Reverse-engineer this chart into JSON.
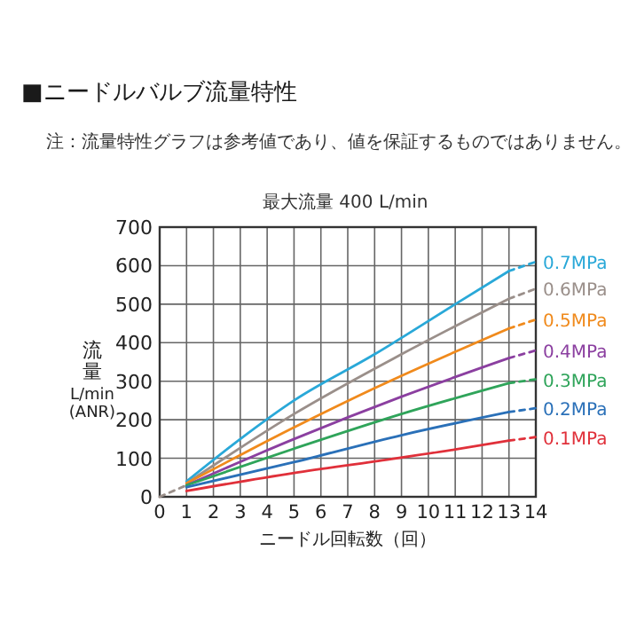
{
  "chart_data": {
    "type": "line",
    "title": "■ニードルバルブ流量特性",
    "subtitle": "最大流量 400 L/min",
    "annotations": [
      "注：流量特性グラフは参考値であり、値を保証するものではありません。"
    ],
    "xlabel": "ニードル回転数（回）",
    "ylabel": "流量 L/min (ANR)",
    "xlim": [
      0,
      14
    ],
    "xticks": [
      0,
      1,
      2,
      3,
      4,
      5,
      6,
      7,
      8,
      9,
      10,
      11,
      12,
      13,
      14
    ],
    "ylim": [
      0,
      700
    ],
    "yticks": [
      0,
      100,
      200,
      300,
      400,
      500,
      600,
      700
    ],
    "grid": true,
    "line_style": "solid",
    "series": [
      {
        "color": "#9a8f8a",
        "x": [
          0,
          1
        ],
        "values": [
          0,
          30
        ],
        "line_style": "dashed"
      },
      {
        "color": "#29a8d8",
        "x": [
          1,
          3,
          5,
          8,
          11,
          13
        ],
        "values": [
          40,
          150,
          250,
          370,
          500,
          586
        ]
      },
      {
        "name": "0.7MPa",
        "color": "#29a8d8",
        "x": [
          13,
          14
        ],
        "values": [
          586,
          610
        ],
        "line_style": "dashed"
      },
      {
        "color": "#9a8f8a",
        "x": [
          1,
          5,
          9,
          13
        ],
        "values": [
          35,
          215,
          370,
          514
        ]
      },
      {
        "name": "0.6MPa",
        "color": "#9a8f8a",
        "x": [
          13,
          14
        ],
        "values": [
          514,
          540
        ],
        "line_style": "dashed"
      },
      {
        "color": "#f08a1c",
        "x": [
          1,
          5,
          8,
          13
        ],
        "values": [
          35,
          180,
          282,
          437
        ]
      },
      {
        "name": "0.5MPa",
        "color": "#f08a1c",
        "x": [
          13,
          14
        ],
        "values": [
          437,
          460
        ],
        "line_style": "dashed"
      },
      {
        "color": "#8b3fa0",
        "x": [
          1,
          5,
          9,
          13
        ],
        "values": [
          30,
          150,
          260,
          360
        ]
      },
      {
        "name": "0.4MPa",
        "color": "#8b3fa0",
        "x": [
          13,
          14
        ],
        "values": [
          360,
          380
        ],
        "line_style": "dashed"
      },
      {
        "color": "#2fa45a",
        "x": [
          1,
          5,
          9,
          13
        ],
        "values": [
          30,
          125,
          215,
          295
        ]
      },
      {
        "name": "0.3MPa",
        "color": "#2fa45a",
        "x": [
          13,
          14
        ],
        "values": [
          295,
          305
        ],
        "line_style": "dashed"
      },
      {
        "color": "#2a70b8",
        "x": [
          1,
          5,
          9,
          13
        ],
        "values": [
          25,
          90,
          160,
          220
        ]
      },
      {
        "name": "0.2MPa",
        "color": "#2a70b8",
        "x": [
          13,
          14
        ],
        "values": [
          220,
          230
        ],
        "line_style": "dashed"
      },
      {
        "color": "#e0303a",
        "x": [
          1,
          5,
          8,
          11,
          13
        ],
        "values": [
          15,
          62,
          92,
          123,
          146
        ]
      },
      {
        "name": "0.1MPa",
        "color": "#e0303a",
        "x": [
          13,
          14
        ],
        "values": [
          146,
          155
        ],
        "line_style": "dashed"
      }
    ]
  }
}
